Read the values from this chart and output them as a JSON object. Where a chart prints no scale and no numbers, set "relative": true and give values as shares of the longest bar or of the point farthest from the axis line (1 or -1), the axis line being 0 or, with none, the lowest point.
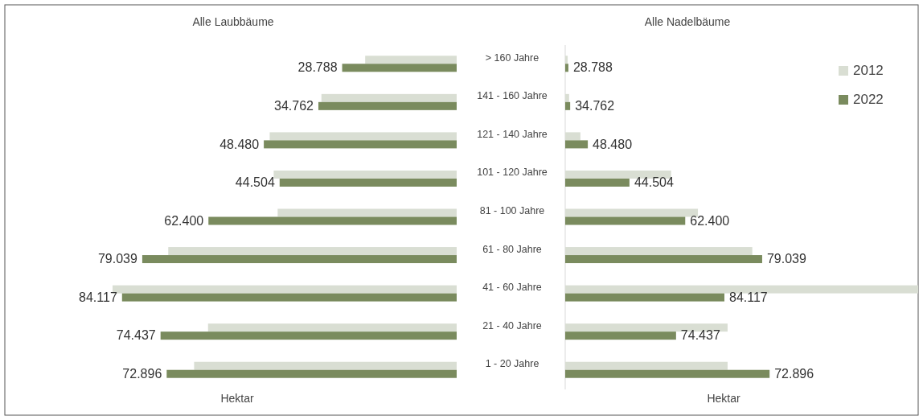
{
  "chart_data": [
    {
      "type": "bar",
      "orientation": "horizontal",
      "title": "Alle Laubbäume",
      "xlabel": "Hektar",
      "xlim": [
        86500,
        0
      ],
      "categories": [
        "> 160 Jahre",
        "141 - 160 Jahre",
        "121 - 140 Jahre",
        "101 - 120 Jahre",
        "81 - 100 Jahre",
        "61 - 80 Jahre",
        "41 - 60 Jahre",
        "21 - 40 Jahre",
        "1 - 20 Jahre"
      ],
      "series": [
        {
          "color": "#d9ded3",
          "values": [
            23000,
            34000,
            47000,
            46000,
            45000,
            72500,
            86500,
            62500,
            66000
          ]
        },
        {
          "color": "#7a8b5e",
          "values": [
            28788,
            34762,
            48480,
            44504,
            62400,
            79039,
            84117,
            74437,
            72896
          ],
          "value_labels": [
            "28.788",
            "34.762",
            "48.480",
            "44.504",
            "62.400",
            "79.039",
            "84.117",
            "74.437",
            "72.896"
          ]
        }
      ]
    },
    {
      "type": "bar",
      "orientation": "horizontal",
      "relative": true,
      "title": "Alle Nadelbäume",
      "xlabel": "Hektar",
      "legend": "top right",
      "categories": [
        null,
        null,
        null,
        null,
        null,
        null,
        null,
        null,
        null
      ],
      "series": [
        {
          "name": "2012",
          "color": "#d9ded3",
          "values": [
            0.007,
            0.011,
            0.043,
            0.3,
            0.376,
            0.53,
            1,
            0.46,
            0.46
          ]
        },
        {
          "name": "2022",
          "color": "#7a8b5e",
          "values": [
            0.009,
            0.014,
            0.064,
            0.182,
            0.34,
            0.558,
            0.451,
            0.314,
            0.579
          ]
        }
      ],
      "annotations": [
        "28.788",
        "34.762",
        "48.480",
        "44.504",
        "62.400",
        "79.039",
        "84.117",
        "74.437",
        "72.896"
      ]
    }
  ]
}
